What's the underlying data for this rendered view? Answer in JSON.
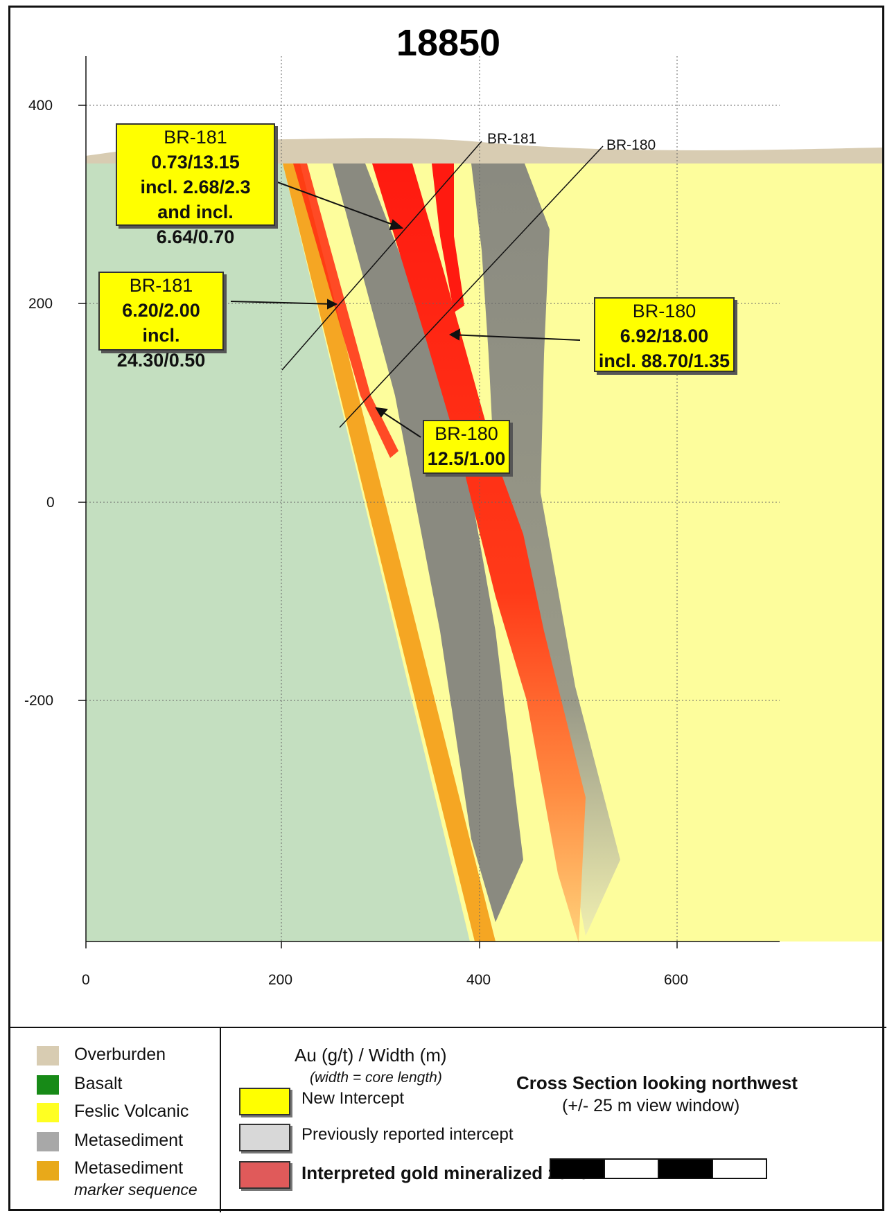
{
  "title": "18850",
  "axes": {
    "x_ticks": [
      "0",
      "200",
      "400",
      "600"
    ],
    "y_ticks": [
      "400",
      "200",
      "0",
      "-200"
    ]
  },
  "drill_holes": [
    "BR-181",
    "BR-180"
  ],
  "callouts": [
    {
      "hole": "BR-181",
      "lines": [
        "0.73/13.15",
        "incl. 2.68/2.3",
        "and incl. 6.64/0.70"
      ]
    },
    {
      "hole": "BR-181",
      "lines": [
        "6.20/2.00",
        "incl. 24.30/0.50"
      ]
    },
    {
      "hole": "BR-180",
      "lines": [
        "6.92/18.00",
        "incl. 88.70/1.35"
      ]
    },
    {
      "hole": "BR-180",
      "lines": [
        "12.5/1.00"
      ]
    }
  ],
  "colors": {
    "overburden": "#d8ccb2",
    "basalt": "#c4dfc0",
    "felsic": "#fdfd9c",
    "metasediment": "#8a8a80",
    "marker": "#f5a623",
    "mineralized": "#ff1a10",
    "callout": "#ffff00"
  },
  "legend": {
    "lithology": [
      {
        "label": "Overburden",
        "color": "#d8ccb2"
      },
      {
        "label": "Basalt",
        "color": "#178a17"
      },
      {
        "label": "Feslic Volcanic",
        "color": "#ffff22"
      },
      {
        "label": "Metasediment",
        "color": "#a8a8a8"
      },
      {
        "label": "Metasediment",
        "sublabel": "marker sequence",
        "color": "#e8a91a"
      }
    ],
    "key_title": "Au (g/t) / Width (m)",
    "key_subtitle": "(width = core length)",
    "items": [
      {
        "label": "New Intercept",
        "color": "#ffff00"
      },
      {
        "label": "Previously reported  intercept",
        "color": "#d8d8d8"
      },
      {
        "label": "Interpreted gold mineralized zone",
        "color": "#e05a5a"
      }
    ],
    "section_title": "Cross Section looking northwest",
    "section_subtitle": "(+/- 25 m view window)"
  }
}
